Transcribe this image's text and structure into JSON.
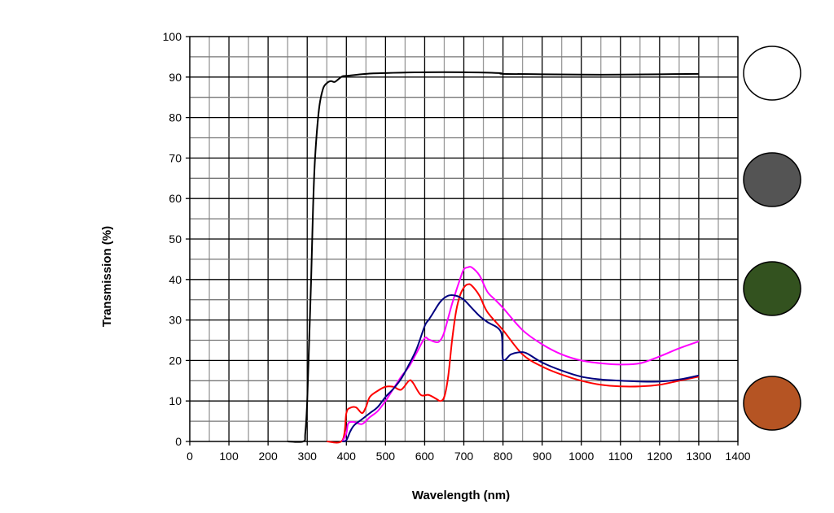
{
  "chart_data": {
    "type": "line",
    "title": "",
    "xlabel": "Wavelength (nm)",
    "ylabel": "Transmission (%)",
    "xlim": [
      0,
      1400
    ],
    "ylim": [
      0,
      100
    ],
    "xticks": [
      0,
      100,
      200,
      300,
      400,
      500,
      600,
      700,
      800,
      900,
      1000,
      1100,
      1200,
      1300,
      1400
    ],
    "yticks": [
      0,
      10,
      20,
      30,
      40,
      50,
      60,
      70,
      80,
      90,
      100
    ],
    "grid": true,
    "legend": "none",
    "series": [
      {
        "color": "#000000",
        "x": [
          250,
          290,
          295,
          300,
          305,
          310,
          315,
          320,
          330,
          340,
          350,
          360,
          370,
          380,
          390,
          400,
          450,
          500,
          600,
          700,
          790,
          800,
          900,
          1000,
          1100,
          1200,
          1300
        ],
        "y": [
          0,
          0,
          2,
          10,
          25,
          40,
          58,
          70,
          82,
          87,
          88.5,
          89,
          88.8,
          89.5,
          90.2,
          90.3,
          90.8,
          91,
          91.2,
          91.2,
          91,
          90.8,
          90.7,
          90.6,
          90.6,
          90.7,
          90.8
        ]
      },
      {
        "color": "#ff0000",
        "x": [
          350,
          390,
          400,
          410,
          425,
          440,
          450,
          460,
          480,
          500,
          520,
          540,
          560,
          570,
          590,
          610,
          630,
          640,
          650,
          660,
          670,
          680,
          690,
          700,
          710,
          720,
          740,
          760,
          800,
          850,
          900,
          950,
          1000,
          1050,
          1100,
          1150,
          1200,
          1250,
          1300
        ],
        "y": [
          0,
          0.3,
          7,
          8.3,
          8.4,
          7,
          8.5,
          11,
          12.5,
          13.5,
          13.5,
          12.8,
          15,
          14.5,
          11.5,
          11.5,
          10.5,
          10,
          11,
          16,
          25,
          32,
          36,
          38,
          38.8,
          38.5,
          36,
          32,
          27.5,
          21.5,
          18.5,
          16.5,
          15,
          14,
          13.6,
          13.6,
          14,
          15,
          16
        ]
      },
      {
        "color": "#ff00ff",
        "x": [
          390,
          400,
          405,
          420,
          440,
          460,
          480,
          500,
          520,
          540,
          560,
          580,
          600,
          610,
          630,
          640,
          650,
          670,
          690,
          700,
          710,
          720,
          740,
          760,
          780,
          800,
          850,
          900,
          950,
          1000,
          1050,
          1100,
          1150,
          1200,
          1250,
          1300
        ],
        "y": [
          0,
          2,
          4.5,
          4.8,
          4.3,
          6,
          7.5,
          10,
          13,
          16,
          18.5,
          22,
          25.5,
          25.2,
          24.5,
          25,
          27,
          34,
          40,
          42.5,
          43,
          43,
          41,
          37,
          35,
          33,
          27.5,
          24,
          21.5,
          20,
          19.3,
          19,
          19.3,
          21,
          23,
          24.7
        ]
      },
      {
        "color": "#000080",
        "x": [
          390,
          400,
          410,
          420,
          440,
          460,
          480,
          500,
          520,
          540,
          560,
          580,
          600,
          610,
          620,
          640,
          660,
          680,
          700,
          720,
          740,
          760,
          795,
          800,
          820,
          840,
          860,
          900,
          950,
          1000,
          1050,
          1100,
          1150,
          1200,
          1250,
          1300
        ],
        "y": [
          0,
          0.3,
          2.5,
          4,
          5.5,
          7,
          8.5,
          11,
          13,
          15.5,
          19,
          23,
          28.5,
          30,
          31.5,
          34.5,
          36,
          36,
          35,
          33,
          31,
          29.5,
          27,
          20.3,
          21.5,
          22,
          21.8,
          19.5,
          17.5,
          16,
          15.3,
          15,
          14.8,
          14.8,
          15.3,
          16.3
        ]
      }
    ]
  },
  "swatches": [
    {
      "color": "#ffffff"
    },
    {
      "color": "#545454"
    },
    {
      "color": "#33521f"
    },
    {
      "color": "#b55423"
    }
  ]
}
